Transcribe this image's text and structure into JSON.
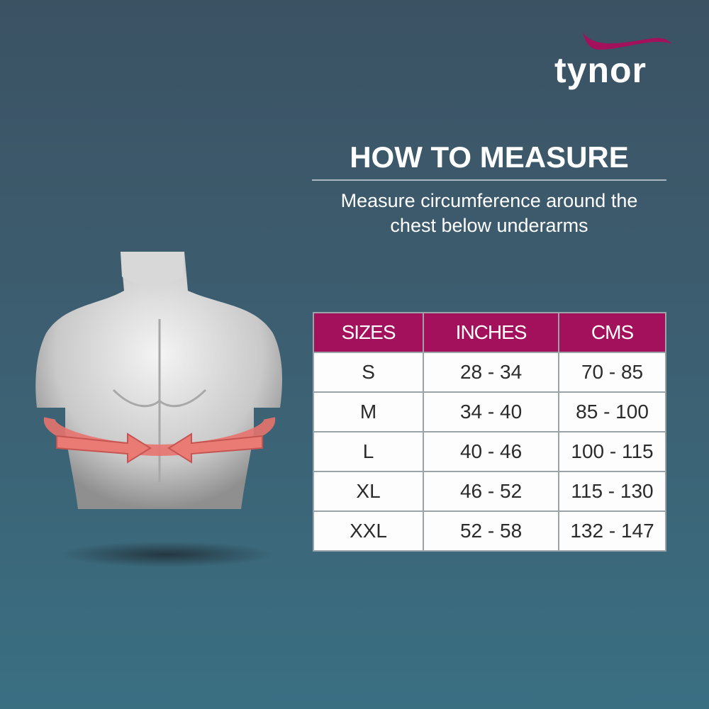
{
  "brand": {
    "logo_text": "tynor",
    "accent_color": "#a3105b"
  },
  "heading": {
    "title": "HOW TO MEASURE",
    "line1": "Measure circumference around the",
    "line2": "chest below underarms"
  },
  "table": {
    "headers": [
      "SIZES",
      "INCHES",
      "CMS"
    ],
    "rows": [
      [
        "S",
        "28 - 34",
        "70 - 85"
      ],
      [
        "M",
        "34 - 40",
        "85 - 100"
      ],
      [
        "L",
        "40 - 46",
        "100 - 115"
      ],
      [
        "XL",
        "46 - 52",
        "115 - 130"
      ],
      [
        "XXL",
        "52 - 58",
        "132 - 147"
      ]
    ]
  },
  "illustration": {
    "subject": "male torso with chest measurement arrows",
    "arrow_color": "#e8736e"
  }
}
